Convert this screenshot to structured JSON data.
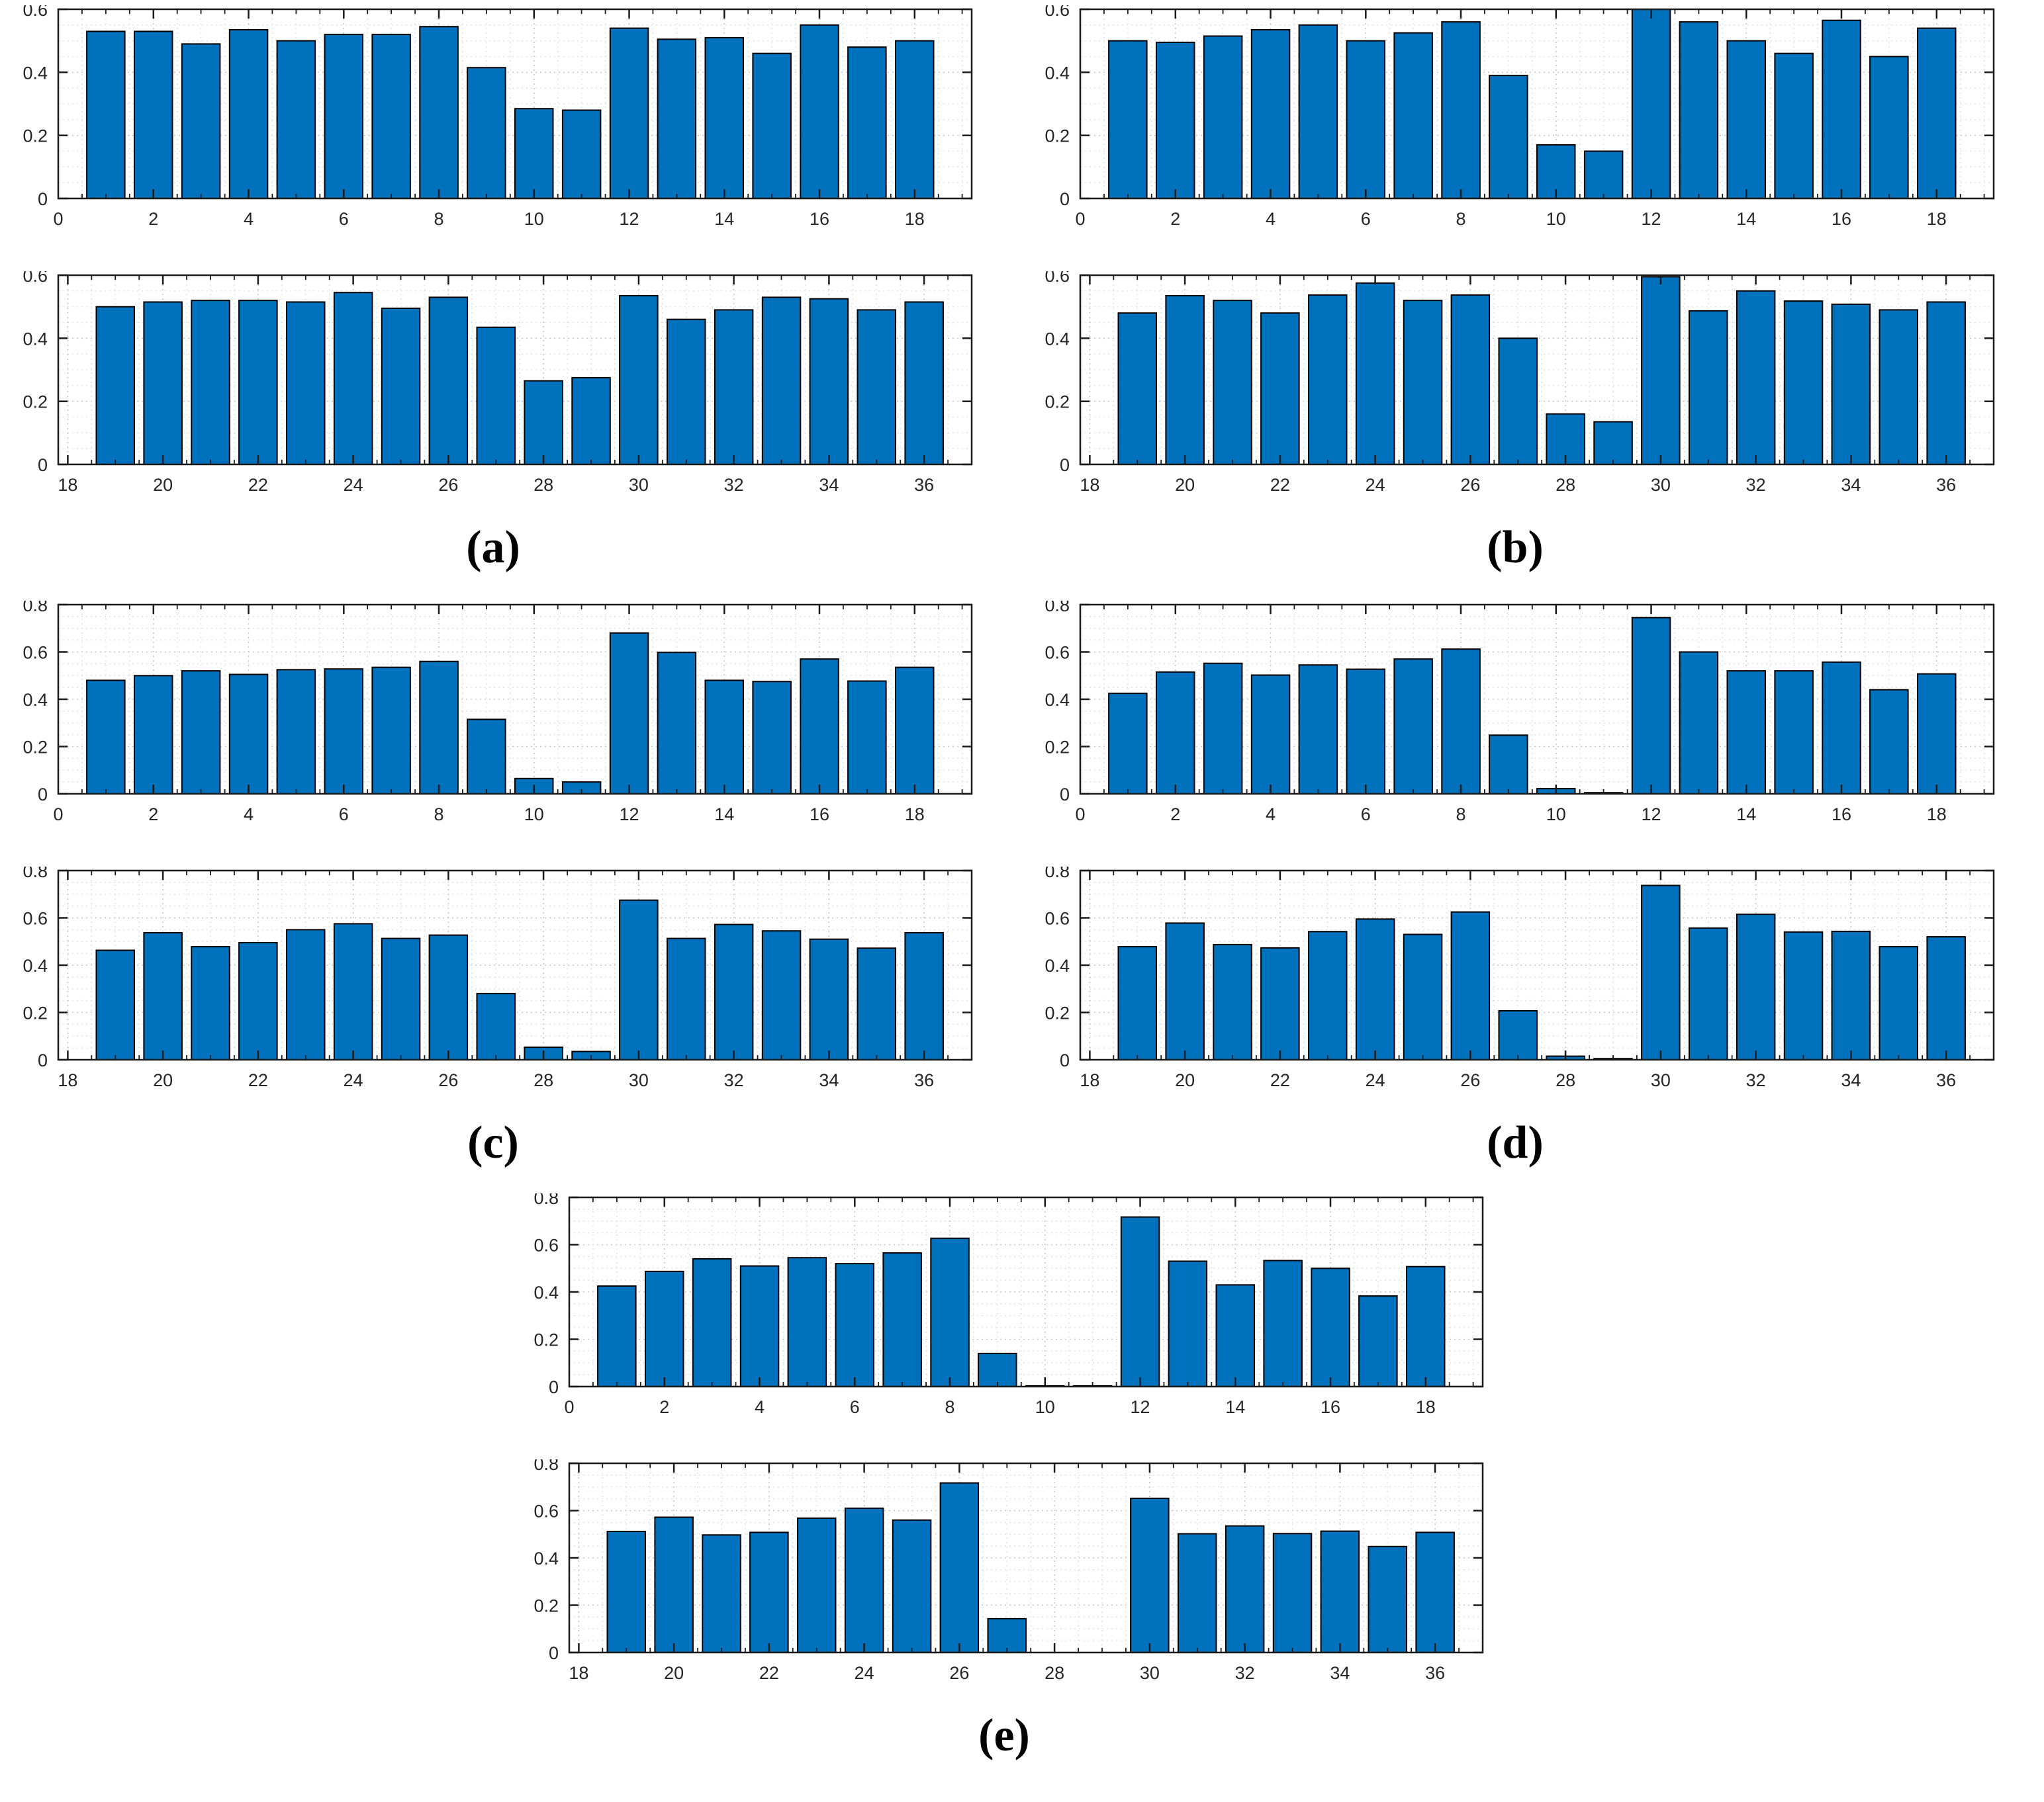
{
  "style": {
    "bar_color": "#0072BD",
    "bar_edge": "#000000",
    "axis_color": "#1a1a1a",
    "grid_major": "#c6c6c6",
    "grid_minor": "#e3e3e3",
    "tick_label_color": "#262626",
    "background": "#ffffff"
  },
  "chart_data": [
    {
      "id": "a",
      "label": "(a)",
      "panels": [
        {
          "type": "bar",
          "ylim": [
            0,
            0.6
          ],
          "yticks": [
            0,
            0.2,
            0.4,
            0.6
          ],
          "xlim": [
            0,
            19.2
          ],
          "xticks": [
            0,
            2,
            4,
            6,
            8,
            10,
            12,
            14,
            16,
            18
          ],
          "x": [
            1,
            2,
            3,
            4,
            5,
            6,
            7,
            8,
            9,
            10,
            11,
            12,
            13,
            14,
            15,
            16,
            17,
            18
          ],
          "values": [
            0.53,
            0.53,
            0.49,
            0.535,
            0.5,
            0.52,
            0.52,
            0.545,
            0.415,
            0.285,
            0.28,
            0.54,
            0.505,
            0.51,
            0.46,
            0.55,
            0.48,
            0.5
          ]
        },
        {
          "type": "bar",
          "ylim": [
            0,
            0.6
          ],
          "yticks": [
            0,
            0.2,
            0.4,
            0.6
          ],
          "xlim": [
            17.8,
            37
          ],
          "xticks": [
            18,
            20,
            22,
            24,
            26,
            28,
            30,
            32,
            34,
            36
          ],
          "x": [
            19,
            20,
            21,
            22,
            23,
            24,
            25,
            26,
            27,
            28,
            29,
            30,
            31,
            32,
            33,
            34,
            35,
            36
          ],
          "values": [
            0.5,
            0.515,
            0.52,
            0.52,
            0.515,
            0.545,
            0.495,
            0.53,
            0.435,
            0.265,
            0.275,
            0.535,
            0.46,
            0.49,
            0.53,
            0.525,
            0.49,
            0.515
          ]
        }
      ]
    },
    {
      "id": "b",
      "label": "(b)",
      "panels": [
        {
          "type": "bar",
          "ylim": [
            0,
            0.6
          ],
          "yticks": [
            0,
            0.2,
            0.4,
            0.6
          ],
          "xlim": [
            0,
            19.2
          ],
          "xticks": [
            0,
            2,
            4,
            6,
            8,
            10,
            12,
            14,
            16,
            18
          ],
          "x": [
            1,
            2,
            3,
            4,
            5,
            6,
            7,
            8,
            9,
            10,
            11,
            12,
            13,
            14,
            15,
            16,
            17,
            18
          ],
          "values": [
            0.5,
            0.495,
            0.515,
            0.535,
            0.55,
            0.5,
            0.525,
            0.56,
            0.39,
            0.17,
            0.15,
            0.62,
            0.56,
            0.5,
            0.46,
            0.565,
            0.45,
            0.54
          ]
        },
        {
          "type": "bar",
          "ylim": [
            0,
            0.6
          ],
          "yticks": [
            0,
            0.2,
            0.4,
            0.6
          ],
          "xlim": [
            17.8,
            37
          ],
          "xticks": [
            18,
            20,
            22,
            24,
            26,
            28,
            30,
            32,
            34,
            36
          ],
          "x": [
            19,
            20,
            21,
            22,
            23,
            24,
            25,
            26,
            27,
            28,
            29,
            30,
            31,
            32,
            33,
            34,
            35,
            36
          ],
          "values": [
            0.48,
            0.535,
            0.52,
            0.48,
            0.537,
            0.575,
            0.52,
            0.537,
            0.4,
            0.16,
            0.135,
            0.595,
            0.487,
            0.55,
            0.518,
            0.508,
            0.49,
            0.515
          ]
        }
      ]
    },
    {
      "id": "c",
      "label": "(c)",
      "panels": [
        {
          "type": "bar",
          "ylim": [
            0,
            0.8
          ],
          "yticks": [
            0,
            0.2,
            0.4,
            0.6,
            0.8
          ],
          "xlim": [
            0,
            19.2
          ],
          "xticks": [
            0,
            2,
            4,
            6,
            8,
            10,
            12,
            14,
            16,
            18
          ],
          "x": [
            1,
            2,
            3,
            4,
            5,
            6,
            7,
            8,
            9,
            10,
            11,
            12,
            13,
            14,
            15,
            16,
            17,
            18
          ],
          "values": [
            0.48,
            0.5,
            0.52,
            0.505,
            0.525,
            0.528,
            0.535,
            0.56,
            0.315,
            0.065,
            0.05,
            0.68,
            0.598,
            0.48,
            0.475,
            0.57,
            0.477,
            0.535
          ]
        },
        {
          "type": "bar",
          "ylim": [
            0,
            0.8
          ],
          "yticks": [
            0,
            0.2,
            0.4,
            0.6,
            0.8
          ],
          "xlim": [
            17.8,
            37
          ],
          "xticks": [
            18,
            20,
            22,
            24,
            26,
            28,
            30,
            32,
            34,
            36
          ],
          "x": [
            19,
            20,
            21,
            22,
            23,
            24,
            25,
            26,
            27,
            28,
            29,
            30,
            31,
            32,
            33,
            34,
            35,
            36
          ],
          "values": [
            0.463,
            0.537,
            0.478,
            0.495,
            0.55,
            0.575,
            0.513,
            0.527,
            0.28,
            0.053,
            0.035,
            0.675,
            0.513,
            0.572,
            0.545,
            0.51,
            0.472,
            0.537
          ]
        }
      ]
    },
    {
      "id": "d",
      "label": "(d)",
      "panels": [
        {
          "type": "bar",
          "ylim": [
            0,
            0.8
          ],
          "yticks": [
            0,
            0.2,
            0.4,
            0.6,
            0.8
          ],
          "xlim": [
            0,
            19.2
          ],
          "xticks": [
            0,
            2,
            4,
            6,
            8,
            10,
            12,
            14,
            16,
            18
          ],
          "x": [
            1,
            2,
            3,
            4,
            5,
            6,
            7,
            8,
            9,
            10,
            11,
            12,
            13,
            14,
            15,
            16,
            17,
            18
          ],
          "values": [
            0.425,
            0.515,
            0.552,
            0.502,
            0.545,
            0.527,
            0.57,
            0.612,
            0.248,
            0.022,
            0.005,
            0.745,
            0.6,
            0.52,
            0.52,
            0.557,
            0.44,
            0.507
          ]
        },
        {
          "type": "bar",
          "ylim": [
            0,
            0.8
          ],
          "yticks": [
            0,
            0.2,
            0.4,
            0.6,
            0.8
          ],
          "xlim": [
            17.8,
            37
          ],
          "xticks": [
            18,
            20,
            22,
            24,
            26,
            28,
            30,
            32,
            34,
            36
          ],
          "x": [
            19,
            20,
            21,
            22,
            23,
            24,
            25,
            26,
            27,
            28,
            29,
            30,
            31,
            32,
            33,
            34,
            35,
            36
          ],
          "values": [
            0.478,
            0.578,
            0.487,
            0.473,
            0.542,
            0.595,
            0.53,
            0.625,
            0.207,
            0.015,
            0.005,
            0.737,
            0.557,
            0.615,
            0.54,
            0.543,
            0.478,
            0.52
          ]
        }
      ]
    },
    {
      "id": "e",
      "label": "(e)",
      "panels": [
        {
          "type": "bar",
          "ylim": [
            0,
            0.8
          ],
          "yticks": [
            0,
            0.2,
            0.4,
            0.6,
            0.8
          ],
          "xlim": [
            0,
            19.2
          ],
          "xticks": [
            0,
            2,
            4,
            6,
            8,
            10,
            12,
            14,
            16,
            18
          ],
          "x": [
            1,
            2,
            3,
            4,
            5,
            6,
            7,
            8,
            9,
            10,
            11,
            12,
            13,
            14,
            15,
            16,
            17,
            18
          ],
          "values": [
            0.425,
            0.487,
            0.54,
            0.51,
            0.545,
            0.52,
            0.565,
            0.627,
            0.14,
            0.003,
            0.003,
            0.717,
            0.53,
            0.43,
            0.533,
            0.5,
            0.383,
            0.507
          ]
        },
        {
          "type": "bar",
          "ylim": [
            0,
            0.8
          ],
          "yticks": [
            0,
            0.2,
            0.4,
            0.6,
            0.8
          ],
          "xlim": [
            17.8,
            37
          ],
          "xticks": [
            18,
            20,
            22,
            24,
            26,
            28,
            30,
            32,
            34,
            36
          ],
          "x": [
            19,
            20,
            21,
            22,
            23,
            24,
            25,
            26,
            27,
            28,
            29,
            30,
            31,
            32,
            33,
            34,
            35,
            36
          ],
          "values": [
            0.512,
            0.572,
            0.497,
            0.508,
            0.568,
            0.61,
            0.56,
            0.717,
            0.143,
            0,
            0,
            0.652,
            0.502,
            0.535,
            0.503,
            0.513,
            0.448,
            0.508
          ]
        }
      ]
    }
  ]
}
